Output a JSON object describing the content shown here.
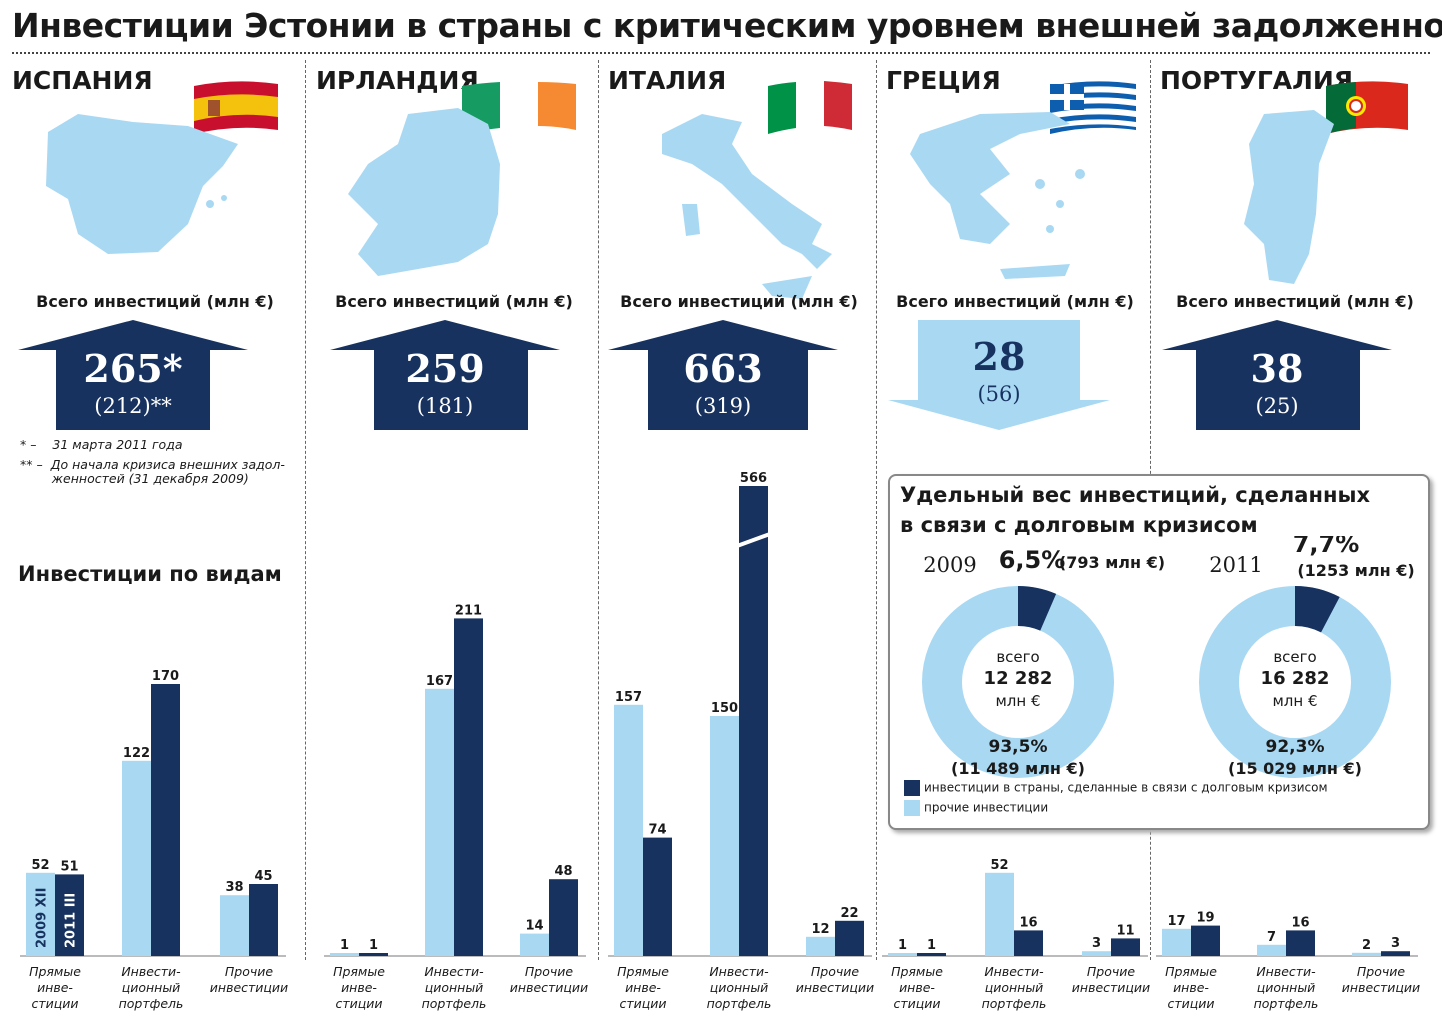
{
  "title": "Инвестиции Эстонии в страны с критическим уровнем внешней задолженности",
  "total_label": "Всего инвестиций (млн €)",
  "section_title": "Инвестиции по видам",
  "notes": {
    "n1_mark": "* –",
    "n1_text": "31 марта 2011 года",
    "n2_mark": "** –",
    "n2_text_1": "До начала кризиса внешних задол-",
    "n2_text_2": "женностей (31 декабря 2009)"
  },
  "year_labels": {
    "y2009": "2009 XII",
    "y2011": "2011 III"
  },
  "categories": [
    {
      "lines": [
        "Прямые",
        "инве-",
        "стиции"
      ]
    },
    {
      "lines": [
        "Инвести-",
        "ционный",
        "портфель"
      ]
    },
    {
      "lines": [
        "Прочие",
        "инвестиции"
      ]
    }
  ],
  "colors": {
    "dark": "#17325f",
    "light": "#a9d8f3",
    "map": "#a9d8f3"
  },
  "countries": [
    {
      "name": "ИСПАНИЯ",
      "total": "265*",
      "prev": "(212)**",
      "direction": "up",
      "flag": "spain-flag-icon",
      "map": "spain-map-icon"
    },
    {
      "name": "ИРЛАНДИЯ",
      "total": "259",
      "prev": "(181)",
      "direction": "up",
      "flag": "ireland-flag-icon",
      "map": "ireland-map-icon"
    },
    {
      "name": "ИТАЛИЯ",
      "total": "663",
      "prev": "(319)",
      "direction": "up",
      "flag": "italy-flag-icon",
      "map": "italy-map-icon"
    },
    {
      "name": "ГРЕЦИЯ",
      "total": "28",
      "prev": "(56)",
      "direction": "down",
      "flag": "greece-flag-icon",
      "map": "greece-map-icon"
    },
    {
      "name": "ПОРТУГАЛИЯ",
      "total": "38",
      "prev": "(25)",
      "direction": "up",
      "flag": "portugal-flag-icon",
      "map": "portugal-map-icon"
    }
  ],
  "chart_data": [
    {
      "type": "bar",
      "title": "ИСПАНИЯ",
      "categories": [
        "Прямые инвестиции",
        "Инвестиционный портфель",
        "Прочие инвестиции"
      ],
      "series": [
        {
          "name": "2009 XII",
          "values": [
            52,
            122,
            38
          ]
        },
        {
          "name": "2011 III",
          "values": [
            51,
            170,
            45
          ]
        }
      ]
    },
    {
      "type": "bar",
      "title": "ИРЛАНДИЯ",
      "categories": [
        "Прямые инвестиции",
        "Инвестиционный портфель",
        "Прочие инвестиции"
      ],
      "series": [
        {
          "name": "2009 XII",
          "values": [
            1,
            167,
            14
          ]
        },
        {
          "name": "2011 III",
          "values": [
            1,
            211,
            48
          ]
        }
      ]
    },
    {
      "type": "bar",
      "title": "ИТАЛИЯ",
      "categories": [
        "Прямые инвестиции",
        "Инвестиционный портфель",
        "Прочие инвестиции"
      ],
      "series": [
        {
          "name": "2009 XII",
          "values": [
            157,
            150,
            12
          ]
        },
        {
          "name": "2011 III",
          "values": [
            74,
            566,
            22
          ]
        }
      ]
    },
    {
      "type": "bar",
      "title": "ГРЕЦИЯ",
      "categories": [
        "Прямые инвестиции",
        "Инвестиционный портфель",
        "Прочие инвестиции"
      ],
      "series": [
        {
          "name": "2009 XII",
          "values": [
            1,
            52,
            3
          ]
        },
        {
          "name": "2011 III",
          "values": [
            1,
            16,
            11
          ]
        }
      ]
    },
    {
      "type": "bar",
      "title": "ПОРТУГАЛИЯ",
      "categories": [
        "Прямые инвестиции",
        "Инвестиционный портфель",
        "Прочие инвестиции"
      ],
      "series": [
        {
          "name": "2009 XII",
          "values": [
            17,
            7,
            2
          ]
        },
        {
          "name": "2011 III",
          "values": [
            19,
            16,
            3
          ]
        }
      ]
    },
    {
      "type": "pie",
      "title": "Удельный вес инвестиций, сделанных в связи с долговым кризисом",
      "donuts": [
        {
          "year": "2009",
          "share_pct": 6.5,
          "share_label": "6,5%",
          "share_amount": "(793 млн €)",
          "rest_pct": 93.5,
          "rest_label": "93,5%",
          "rest_amount": "(11 489 млн €)",
          "total_word": "всего",
          "total_value": "12 282",
          "total_unit": "млн €"
        },
        {
          "year": "2011",
          "share_pct": 7.7,
          "share_label": "7,7%",
          "share_amount": "(1253 млн €)",
          "rest_pct": 92.3,
          "rest_label": "92,3%",
          "rest_amount": "(15 029 млн €)",
          "total_word": "всего",
          "total_value": "16 282",
          "total_unit": "млн €"
        }
      ],
      "legend": [
        "инвестиции в страны, сделанные в связи с долговым кризисом",
        "прочие инвестиции"
      ]
    }
  ]
}
